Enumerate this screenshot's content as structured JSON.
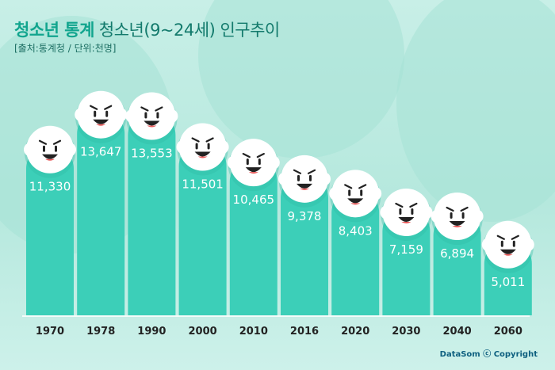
{
  "header": {
    "title_main": "청소년 통계",
    "title_sub": "청소년(9~24세) 인구추이",
    "source": "[출처:통계청 / 단위:천명]"
  },
  "footer": {
    "copyright": "DataSom ⓒ Copyright"
  },
  "colors": {
    "bar": "#3ccfb8",
    "bar_highlight": "#52d8c3",
    "face": "#ffffff",
    "title_accent": "#11a58e",
    "value_text": "#ffffff",
    "year_text": "#222222"
  },
  "chart_data": {
    "type": "bar",
    "title": "청소년(9~24세) 인구추이",
    "unit": "천명",
    "categories": [
      "1970",
      "1978",
      "1990",
      "2000",
      "2010",
      "2016",
      "2020",
      "2030",
      "2040",
      "2060"
    ],
    "values": [
      11330,
      13647,
      13553,
      11501,
      10465,
      9378,
      8403,
      7159,
      6894,
      5011
    ],
    "value_labels": [
      "11,330",
      "13,647",
      "13,553",
      "11,501",
      "10,465",
      "9,378",
      "8,403",
      "7,159",
      "6,894",
      "5,011"
    ],
    "xlabel": "",
    "ylabel": "",
    "grid": false,
    "legend": "none"
  }
}
